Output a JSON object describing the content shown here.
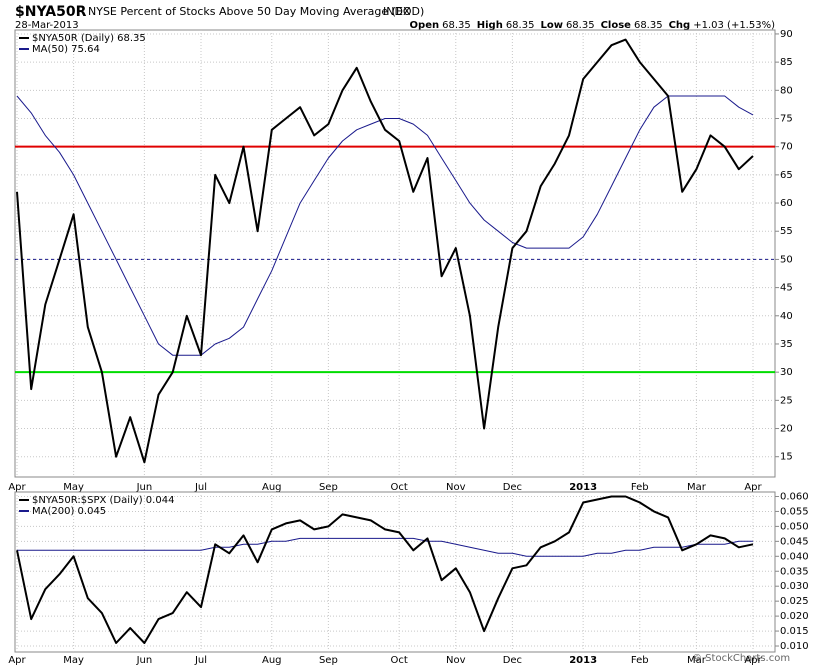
{
  "header": {
    "symbol": "$NYA50R",
    "name": "NYSE Percent of Stocks Above 50 Day Moving Average (EOD)",
    "exchange": "INDX",
    "date": "28-Mar-2013",
    "quote": [
      {
        "label": "Open",
        "value": "68.35"
      },
      {
        "label": "High",
        "value": "68.35"
      },
      {
        "label": "Low",
        "value": "68.35"
      },
      {
        "label": "Close",
        "value": "68.35"
      },
      {
        "label": "Chg",
        "value": "+1.03 (+1.53%)"
      }
    ],
    "watermark": "© StockCharts.com"
  },
  "chart_data": [
    {
      "type": "line",
      "categories": [
        "Apr",
        null,
        null,
        null,
        "May",
        null,
        null,
        null,
        null,
        "Jun",
        null,
        null,
        null,
        "Jul",
        null,
        null,
        null,
        null,
        "Aug",
        null,
        null,
        null,
        "Sep",
        null,
        null,
        null,
        null,
        "Oct",
        null,
        null,
        null,
        "Nov",
        null,
        null,
        null,
        "Dec",
        null,
        null,
        null,
        null,
        "2013",
        null,
        null,
        null,
        "Feb",
        null,
        null,
        null,
        "Mar",
        null,
        null,
        null,
        "Apr"
      ],
      "series": [
        {
          "name": "$NYA50R (Daily) 68.35",
          "color": "#000000",
          "width": 2,
          "values": [
            62,
            27,
            42,
            50,
            58,
            38,
            30,
            15,
            22,
            14,
            26,
            30,
            40,
            33,
            65,
            60,
            70,
            55,
            73,
            75,
            77,
            72,
            74,
            80,
            84,
            78,
            73,
            71,
            62,
            68,
            47,
            52,
            40,
            20,
            38,
            52,
            55,
            63,
            67,
            72,
            82,
            85,
            88,
            89,
            85,
            82,
            79,
            62,
            66,
            72,
            70,
            66,
            68.35
          ]
        },
        {
          "name": "MA(50) 75.64",
          "color": "#1a1a8c",
          "width": 1,
          "values": [
            79,
            76,
            72,
            69,
            65,
            60,
            55,
            50,
            45,
            40,
            35,
            33,
            33,
            33,
            35,
            36,
            38,
            43,
            48,
            54,
            60,
            64,
            68,
            71,
            73,
            74,
            75,
            75,
            74,
            72,
            68,
            64,
            60,
            57,
            55,
            53,
            52,
            52,
            52,
            52,
            54,
            58,
            63,
            68,
            73,
            77,
            79,
            79,
            79,
            79,
            79,
            77,
            75.64
          ]
        }
      ],
      "reference_lines": [
        {
          "value": 70,
          "color": "#e00000",
          "dashed": false
        },
        {
          "value": 50,
          "color": "#1a1a8c",
          "dashed": true
        },
        {
          "value": 30,
          "color": "#00dd00",
          "dashed": false
        }
      ],
      "ylim": [
        11.4,
        90.7
      ],
      "yticks": [
        15,
        20,
        25,
        30,
        35,
        40,
        45,
        50,
        55,
        60,
        65,
        70,
        75,
        80,
        85,
        90
      ],
      "grid": true
    },
    {
      "type": "line",
      "categories": [
        "Apr",
        null,
        null,
        null,
        "May",
        null,
        null,
        null,
        null,
        "Jun",
        null,
        null,
        null,
        "Jul",
        null,
        null,
        null,
        null,
        "Aug",
        null,
        null,
        null,
        "Sep",
        null,
        null,
        null,
        null,
        "Oct",
        null,
        null,
        null,
        "Nov",
        null,
        null,
        null,
        "Dec",
        null,
        null,
        null,
        null,
        "2013",
        null,
        null,
        null,
        "Feb",
        null,
        null,
        null,
        "Mar",
        null,
        null,
        null,
        "Apr"
      ],
      "series": [
        {
          "name": "$NYA50R:$SPX (Daily) 0.044",
          "color": "#000000",
          "width": 2,
          "values": [
            0.042,
            0.019,
            0.029,
            0.034,
            0.04,
            0.026,
            0.021,
            0.011,
            0.016,
            0.011,
            0.019,
            0.021,
            0.028,
            0.023,
            0.044,
            0.041,
            0.047,
            0.038,
            0.049,
            0.051,
            0.052,
            0.049,
            0.05,
            0.054,
            0.053,
            0.052,
            0.049,
            0.048,
            0.042,
            0.046,
            0.032,
            0.036,
            0.028,
            0.015,
            0.026,
            0.036,
            0.037,
            0.043,
            0.045,
            0.048,
            0.058,
            0.059,
            0.06,
            0.06,
            0.058,
            0.055,
            0.053,
            0.042,
            0.044,
            0.047,
            0.046,
            0.043,
            0.044
          ]
        },
        {
          "name": "MA(200) 0.045",
          "color": "#1a1a8c",
          "width": 1,
          "values": [
            0.042,
            0.042,
            0.042,
            0.042,
            0.042,
            0.042,
            0.042,
            0.042,
            0.042,
            0.042,
            0.042,
            0.042,
            0.042,
            0.042,
            0.043,
            0.043,
            0.044,
            0.044,
            0.045,
            0.045,
            0.046,
            0.046,
            0.046,
            0.046,
            0.046,
            0.046,
            0.046,
            0.046,
            0.046,
            0.045,
            0.045,
            0.044,
            0.043,
            0.042,
            0.041,
            0.041,
            0.04,
            0.04,
            0.04,
            0.04,
            0.04,
            0.041,
            0.041,
            0.042,
            0.042,
            0.043,
            0.043,
            0.043,
            0.044,
            0.044,
            0.044,
            0.045,
            0.045
          ]
        }
      ],
      "reference_lines": [],
      "ylim": [
        0.008,
        0.0615
      ],
      "yticks": [
        {
          "value": 0.01,
          "label": "0.010"
        },
        {
          "value": 0.015,
          "label": "0.015"
        },
        {
          "value": 0.02,
          "label": "0.020"
        },
        {
          "value": 0.025,
          "label": "0.025"
        },
        {
          "value": 0.03,
          "label": "0.030"
        },
        {
          "value": 0.035,
          "label": "0.035"
        },
        {
          "value": 0.04,
          "label": "0.040"
        },
        {
          "value": 0.045,
          "label": "0.045"
        },
        {
          "value": 0.05,
          "label": "0.050"
        },
        {
          "value": 0.055,
          "label": "0.055"
        },
        {
          "value": 0.06,
          "label": "0.060"
        }
      ],
      "grid": true
    }
  ]
}
